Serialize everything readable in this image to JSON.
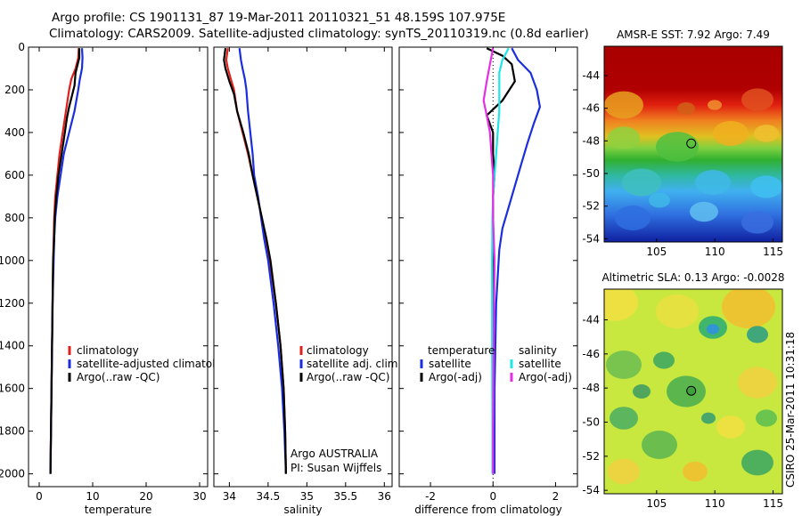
{
  "title": {
    "line1": "Argo profile: CS 1901131_87 19-Mar-2011 20110321_51 48.159S 107.975E",
    "line2": "Climatology: CARS2009. Satellite-adjusted climatology: synTS_20110319.nc (0.8d earlier)"
  },
  "credit": "CSIRO 25-Mar-2011 10:31:18",
  "chart_data": [
    {
      "type": "line",
      "panel": "temperature",
      "xlabel": "temperature",
      "ylabel": "",
      "xlim": [
        -2,
        31.5
      ],
      "ylim": [
        2060,
        0
      ],
      "x_ticks": [
        0,
        10,
        20,
        30
      ],
      "y_ticks": [
        0,
        200,
        400,
        600,
        800,
        1000,
        1200,
        1400,
        1600,
        1800,
        2000
      ],
      "legend": [
        "climatology",
        "satellite-adjusted climatology",
        "Argo(..raw -QC)"
      ],
      "legend_placement": "lower-right",
      "series": [
        {
          "name": "climatology",
          "color": "#e0201a",
          "points": [
            [
              7.4,
              5
            ],
            [
              7.3,
              50
            ],
            [
              6.8,
              100
            ],
            [
              6.0,
              150
            ],
            [
              5.6,
              200
            ],
            [
              5.0,
              300
            ],
            [
              4.4,
              400
            ],
            [
              3.8,
              500
            ],
            [
              3.4,
              600
            ],
            [
              3.0,
              700
            ],
            [
              2.8,
              800
            ],
            [
              2.7,
              900
            ],
            [
              2.6,
              1000
            ],
            [
              2.5,
              1200
            ],
            [
              2.4,
              1400
            ],
            [
              2.3,
              1600
            ],
            [
              2.2,
              1800
            ],
            [
              2.1,
              2000
            ]
          ]
        },
        {
          "name": "satellite-adjusted climatology",
          "color": "#1a2ee0",
          "points": [
            [
              8.0,
              5
            ],
            [
              8.1,
              50
            ],
            [
              8.0,
              100
            ],
            [
              7.6,
              150
            ],
            [
              7.3,
              200
            ],
            [
              6.6,
              300
            ],
            [
              5.6,
              400
            ],
            [
              4.6,
              500
            ],
            [
              4.0,
              600
            ],
            [
              3.4,
              700
            ],
            [
              3.0,
              800
            ],
            [
              2.8,
              900
            ],
            [
              2.7,
              1000
            ],
            [
              2.5,
              1200
            ],
            [
              2.4,
              1400
            ],
            [
              2.3,
              1600
            ],
            [
              2.2,
              1800
            ],
            [
              2.1,
              2000
            ]
          ]
        },
        {
          "name": "Argo(..raw -QC)",
          "color": "#000000",
          "points": [
            [
              7.5,
              5
            ],
            [
              7.5,
              50
            ],
            [
              7.2,
              80
            ],
            [
              6.8,
              120
            ],
            [
              6.6,
              180
            ],
            [
              6.2,
              220
            ],
            [
              5.6,
              280
            ],
            [
              5.2,
              330
            ],
            [
              4.8,
              400
            ],
            [
              4.2,
              500
            ],
            [
              3.6,
              600
            ],
            [
              3.2,
              700
            ],
            [
              2.9,
              800
            ],
            [
              2.8,
              900
            ],
            [
              2.6,
              1000
            ],
            [
              2.5,
              1200
            ],
            [
              2.4,
              1400
            ],
            [
              2.3,
              1600
            ],
            [
              2.2,
              1800
            ],
            [
              2.1,
              2000
            ]
          ]
        }
      ]
    },
    {
      "type": "line",
      "panel": "salinity",
      "xlabel": "salinity",
      "ylabel": "",
      "xlim": [
        33.8,
        36.1
      ],
      "ylim": [
        2060,
        0
      ],
      "x_ticks": [
        34,
        34.5,
        35,
        35.5,
        36
      ],
      "legend": [
        "climatology",
        "satellite adj. clim.",
        "Argo(..raw -QC)"
      ],
      "legend_placement": "lower-right",
      "annotations": [
        "Argo AUSTRALIA",
        "PI: Susan Wijffels"
      ],
      "series": [
        {
          "name": "climatology",
          "color": "#e0201a",
          "points": [
            [
              33.98,
              5
            ],
            [
              33.96,
              60
            ],
            [
              33.98,
              100
            ],
            [
              34.02,
              150
            ],
            [
              34.06,
              200
            ],
            [
              34.1,
              300
            ],
            [
              34.17,
              400
            ],
            [
              34.24,
              500
            ],
            [
              34.3,
              600
            ],
            [
              34.36,
              700
            ],
            [
              34.42,
              800
            ],
            [
              34.47,
              900
            ],
            [
              34.52,
              1000
            ],
            [
              34.6,
              1200
            ],
            [
              34.66,
              1400
            ],
            [
              34.7,
              1600
            ],
            [
              34.72,
              1800
            ],
            [
              34.73,
              2000
            ]
          ]
        },
        {
          "name": "satellite adj. clim.",
          "color": "#1a2ee0",
          "points": [
            [
              34.13,
              5
            ],
            [
              34.15,
              60
            ],
            [
              34.17,
              100
            ],
            [
              34.2,
              150
            ],
            [
              34.22,
              200
            ],
            [
              34.24,
              300
            ],
            [
              34.27,
              400
            ],
            [
              34.3,
              500
            ],
            [
              34.32,
              600
            ],
            [
              34.37,
              700
            ],
            [
              34.41,
              800
            ],
            [
              34.45,
              900
            ],
            [
              34.5,
              1000
            ],
            [
              34.57,
              1200
            ],
            [
              34.63,
              1400
            ],
            [
              34.68,
              1600
            ],
            [
              34.71,
              1800
            ],
            [
              34.73,
              2000
            ]
          ]
        },
        {
          "name": "Argo(..raw -QC)",
          "color": "#000000",
          "points": [
            [
              33.95,
              5
            ],
            [
              33.93,
              60
            ],
            [
              33.95,
              100
            ],
            [
              34.0,
              160
            ],
            [
              34.06,
              220
            ],
            [
              34.1,
              300
            ],
            [
              34.18,
              400
            ],
            [
              34.25,
              500
            ],
            [
              34.3,
              600
            ],
            [
              34.36,
              700
            ],
            [
              34.42,
              800
            ],
            [
              34.48,
              900
            ],
            [
              34.53,
              1000
            ],
            [
              34.6,
              1200
            ],
            [
              34.66,
              1400
            ],
            [
              34.7,
              1600
            ],
            [
              34.72,
              1800
            ],
            [
              34.73,
              2000
            ]
          ]
        }
      ]
    },
    {
      "type": "line",
      "panel": "difference",
      "xlabel": "difference from climatology",
      "ylabel": "",
      "xlim": [
        -3,
        2.7
      ],
      "ylim": [
        2060,
        0
      ],
      "x_ticks": [
        -2,
        0,
        2
      ],
      "legend": [
        "temperature",
        "satellite",
        "Argo(-adj)",
        "salinity",
        "satellite",
        "Argo(-adj)"
      ],
      "legend_placement": "lower",
      "series": [
        {
          "name": "satellite",
          "quantity": "temperature",
          "color": "#1a2ee0",
          "points": [
            [
              0.6,
              5
            ],
            [
              0.8,
              60
            ],
            [
              1.2,
              120
            ],
            [
              1.4,
              200
            ],
            [
              1.5,
              280
            ],
            [
              1.3,
              360
            ],
            [
              1.1,
              450
            ],
            [
              0.9,
              550
            ],
            [
              0.7,
              650
            ],
            [
              0.5,
              750
            ],
            [
              0.3,
              850
            ],
            [
              0.2,
              950
            ],
            [
              0.1,
              1200
            ],
            [
              0.05,
              1600
            ],
            [
              0.05,
              2000
            ]
          ]
        },
        {
          "name": "Argo(-adj)",
          "quantity": "temperature",
          "color": "#000000",
          "points": [
            [
              -0.2,
              5
            ],
            [
              0.3,
              40
            ],
            [
              0.6,
              80
            ],
            [
              0.7,
              160
            ],
            [
              0.3,
              250
            ],
            [
              -0.2,
              320
            ],
            [
              0.0,
              400
            ],
            [
              0.0,
              500
            ],
            [
              0.05,
              600
            ],
            [
              0.0,
              700
            ],
            [
              0.0,
              800
            ],
            [
              0.0,
              1000
            ],
            [
              0.0,
              1400
            ],
            [
              0.0,
              1800
            ],
            [
              0.0,
              2000
            ]
          ]
        },
        {
          "name": "satellite",
          "quantity": "salinity",
          "color": "#1ee6e6",
          "points": [
            [
              0.5,
              5
            ],
            [
              0.3,
              60
            ],
            [
              0.2,
              120
            ],
            [
              0.2,
              200
            ],
            [
              0.2,
              300
            ],
            [
              0.15,
              400
            ],
            [
              0.1,
              500
            ],
            [
              0.05,
              600
            ],
            [
              0.0,
              700
            ],
            [
              -0.02,
              800
            ],
            [
              -0.03,
              1000
            ],
            [
              -0.03,
              1400
            ],
            [
              -0.02,
              1800
            ],
            [
              -0.02,
              2000
            ]
          ]
        },
        {
          "name": "Argo(-adj)",
          "quantity": "salinity",
          "color": "#e62ee6",
          "points": [
            [
              0.0,
              5
            ],
            [
              -0.1,
              80
            ],
            [
              -0.2,
              160
            ],
            [
              -0.3,
              250
            ],
            [
              -0.2,
              320
            ],
            [
              -0.1,
              400
            ],
            [
              -0.05,
              500
            ],
            [
              0.0,
              600
            ],
            [
              0.0,
              800
            ],
            [
              0.05,
              1000
            ],
            [
              0.02,
              1400
            ],
            [
              0.0,
              1800
            ],
            [
              0.0,
              2000
            ]
          ]
        }
      ]
    },
    {
      "type": "heatmap",
      "panel": "sst-map",
      "title": "AMSR-E SST: 7.92 Argo: 7.49",
      "xlim": [
        100.5,
        115.8
      ],
      "ylim": [
        -54.2,
        -42.2
      ],
      "x_ticks": [
        105,
        110,
        115
      ],
      "y_ticks": [
        -44,
        -46,
        -48,
        -50,
        -52,
        -54
      ],
      "marker": {
        "lon": 107.975,
        "lat": -48.159
      }
    },
    {
      "type": "heatmap",
      "panel": "sla-map",
      "title": "Altimetric SLA: 0.13 Argo: -0.0028",
      "xlim": [
        100.5,
        115.8
      ],
      "ylim": [
        -54.2,
        -42.2
      ],
      "x_ticks": [
        105,
        110,
        115
      ],
      "y_ticks": [
        -44,
        -46,
        -48,
        -50,
        -52,
        -54
      ],
      "marker": {
        "lon": 107.975,
        "lat": -48.159
      }
    }
  ]
}
